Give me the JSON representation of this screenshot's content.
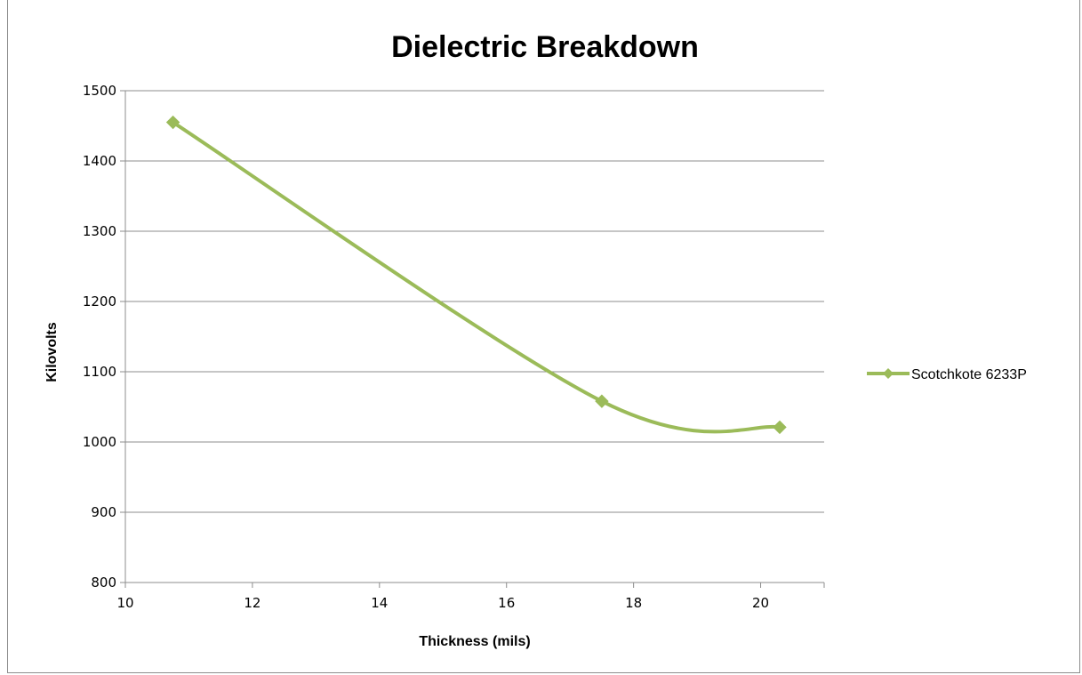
{
  "chart_data": {
    "type": "line",
    "title": "Dielectric Breakdown",
    "xlabel": "Thickness (mils)",
    "ylabel": "Kilovolts",
    "xlim": [
      10,
      21
    ],
    "ylim": [
      800,
      1500
    ],
    "xticks": [
      10,
      12,
      14,
      16,
      18,
      20
    ],
    "yticks": [
      800,
      900,
      1000,
      1100,
      1200,
      1300,
      1400,
      1500
    ],
    "grid": "horizontal",
    "legend_position": "right",
    "smooth": true,
    "series": [
      {
        "name": "Scotchkote 6233P",
        "color": "#9BBB59",
        "marker": "diamond",
        "x": [
          10.75,
          17.5,
          20.3
        ],
        "y": [
          1455,
          1058,
          1021
        ]
      }
    ]
  }
}
